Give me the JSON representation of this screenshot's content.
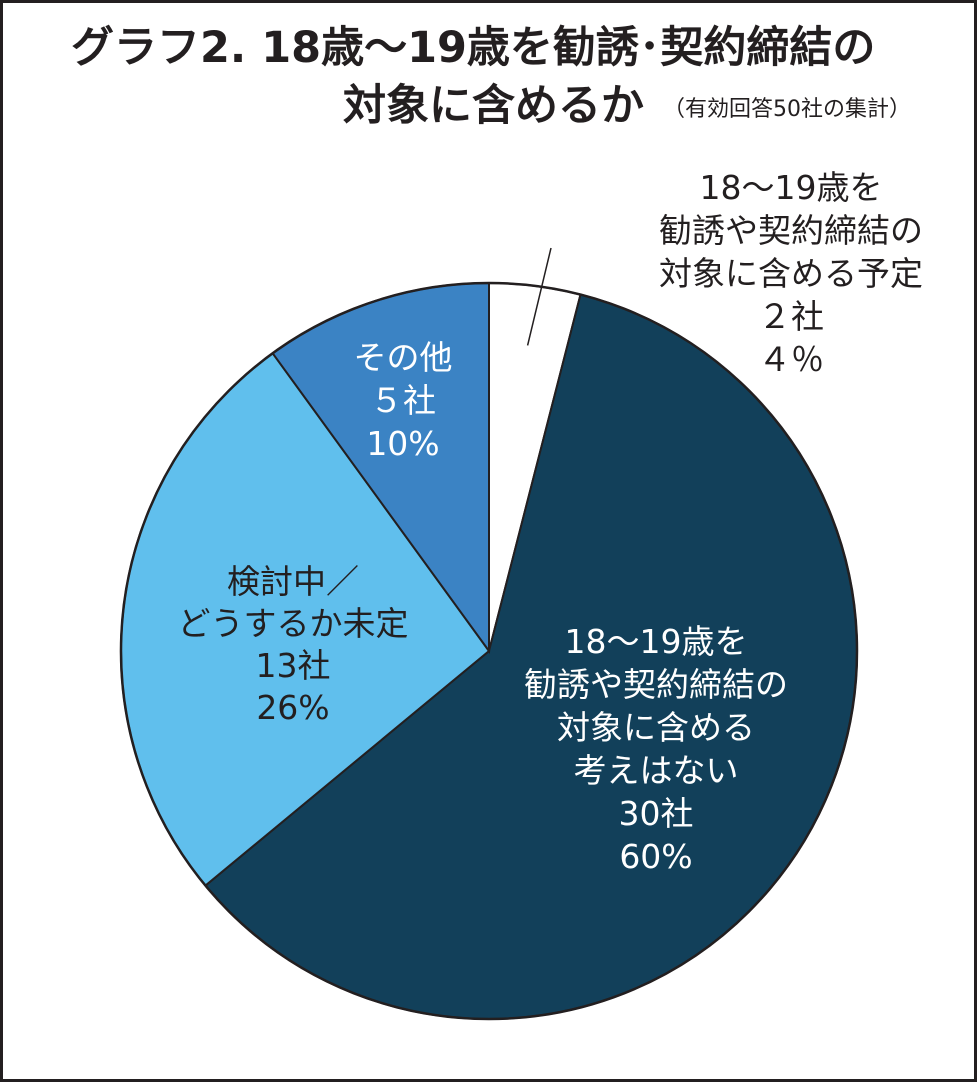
{
  "title": {
    "line1": "グラフ2. 18歳〜19歳を勧誘･契約締結の",
    "line2": "対象に含めるか",
    "note": "（有効回答50社の集計）"
  },
  "colors": {
    "frame": "#231f20",
    "text": "#231f20",
    "slice_stroke": "#231f20"
  },
  "chart_data": {
    "type": "pie",
    "unit": "社",
    "total": 50,
    "slices": [
      {
        "label_lines": [
          "18〜19歳を",
          "勧誘や契約締結の",
          "対象に含める予定"
        ],
        "count_text": "２社",
        "percent_text": "４％",
        "count": 2,
        "percent": 4,
        "color": "#ffffff",
        "text_color": "#231f20",
        "label_outside": true
      },
      {
        "label_lines": [
          "18〜19歳を",
          "勧誘や契約締結の",
          "対象に含める",
          "考えはない"
        ],
        "count_text": "30社",
        "percent_text": "60%",
        "count": 30,
        "percent": 60,
        "color": "#12405a",
        "text_color": "#ffffff",
        "label_outside": false
      },
      {
        "label_lines": [
          "検討中／",
          "どうするか未定"
        ],
        "count_text": "13社",
        "percent_text": "26%",
        "count": 13,
        "percent": 26,
        "color": "#60bfed",
        "text_color": "#231f20",
        "label_outside": false
      },
      {
        "label_lines": [
          "その他"
        ],
        "count_text": "５社",
        "percent_text": "10%",
        "count": 5,
        "percent": 10,
        "color": "#3b83c4",
        "text_color": "#ffffff",
        "label_outside": false
      }
    ]
  }
}
